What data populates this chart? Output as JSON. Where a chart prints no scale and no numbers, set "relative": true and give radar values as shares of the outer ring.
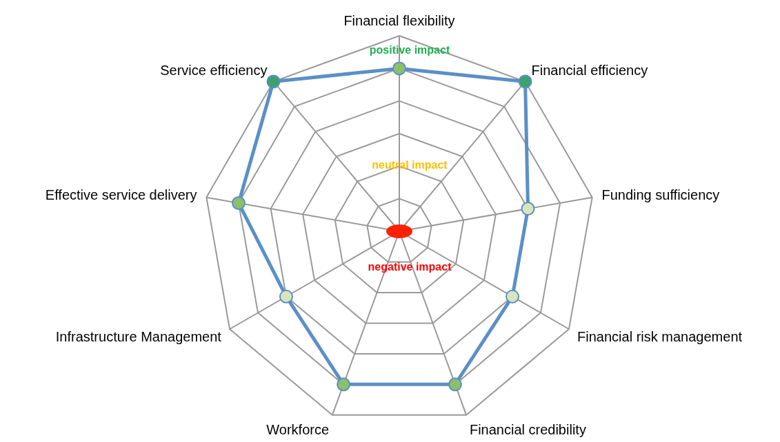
{
  "chart_data": {
    "type": "radar",
    "relative": true,
    "grid": true,
    "marker": "circle",
    "categories": [
      "Financial flexibility",
      "Financial efficiency",
      "Funding sufficiency",
      "Financial risk management",
      "Financial credibility",
      "Workforce",
      "Infrastructure Management",
      "Effective service delivery",
      "Service efficiency"
    ],
    "series": [
      {
        "color": "#5b8fc7",
        "values": [
          0.833,
          1,
          0.667,
          0.667,
          0.833,
          0.833,
          0.667,
          0.833,
          1
        ],
        "colors": [
          "#8bc06a",
          "#3aa36a",
          "#d8e6bf",
          "#d8e6bf",
          "#8bc06a",
          "#8bc06a",
          "#d8e6bf",
          "#8bc06a",
          "#3aa36a"
        ]
      }
    ],
    "annotations": [
      "positive impact",
      "neutral impact",
      "negative impact"
    ]
  }
}
